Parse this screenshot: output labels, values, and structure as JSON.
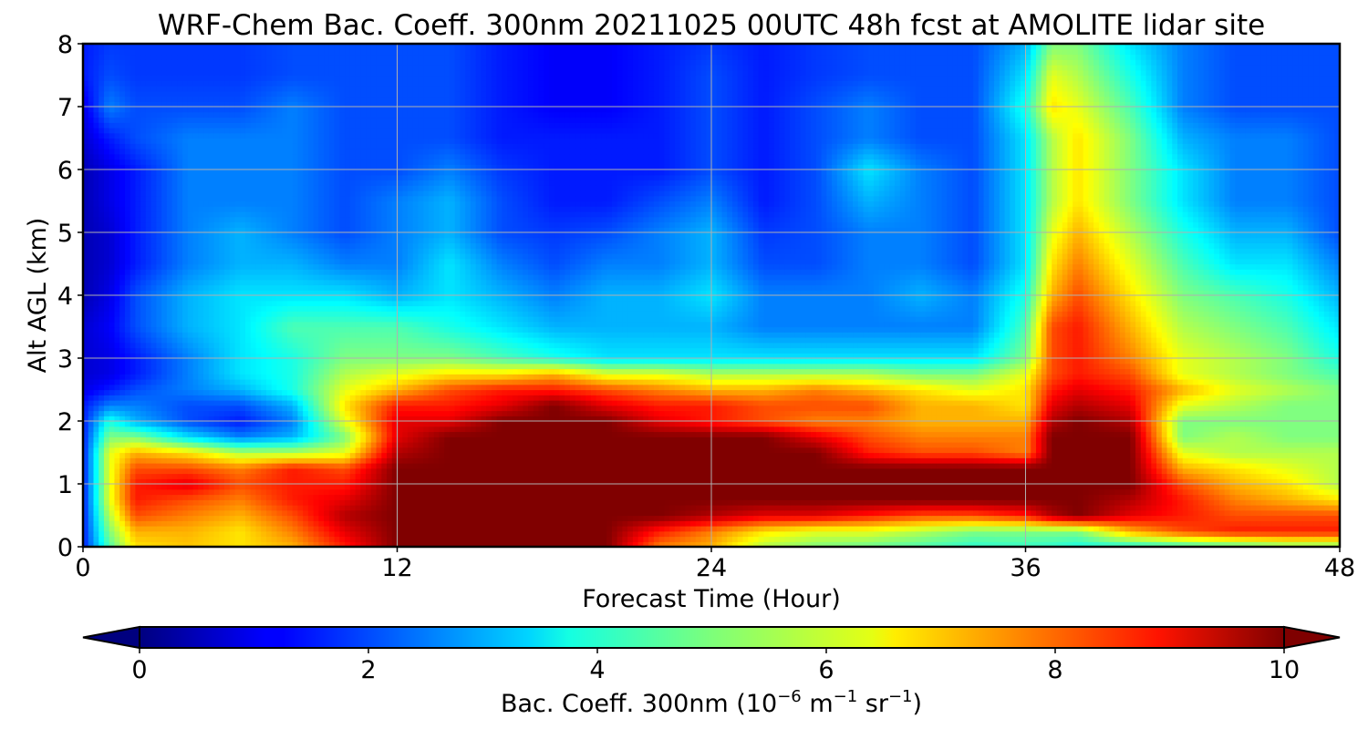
{
  "chart_data": {
    "type": "heatmap",
    "title": "WRF-Chem Bac. Coeff. 300nm  20211025 00UTC 48h fcst at AMOLITE lidar site",
    "xlabel": "Forecast Time (Hour)",
    "ylabel": "Alt AGL (km)",
    "xlim": [
      0,
      48
    ],
    "ylim": [
      0,
      8
    ],
    "xticks": [
      "0",
      "12",
      "24",
      "36",
      "48"
    ],
    "yticks": [
      "0",
      "1",
      "2",
      "3",
      "4",
      "5",
      "6",
      "7",
      "8"
    ],
    "grid": true,
    "colormap": "jet",
    "colorbar": {
      "label": "Bac. Coeff. 300nm  (10^-6 m^-1 sr^-1)",
      "label_prefix": "Bac. Coeff. 300nm  (10",
      "label_exp1": "−6",
      "label_mid": " m",
      "label_exp2": "−1",
      "label_mid2": " sr",
      "label_exp3": "−1",
      "label_suffix": ")",
      "range": [
        0,
        10
      ],
      "extend": "both",
      "ticks": [
        "0",
        "2",
        "4",
        "6",
        "8",
        "10"
      ]
    },
    "x": [
      0,
      1,
      2,
      4,
      6,
      8,
      10,
      12,
      14,
      16,
      18,
      20,
      22,
      24,
      26,
      28,
      30,
      32,
      34,
      36,
      37,
      38,
      40,
      42,
      44,
      46,
      48
    ],
    "y": [
      0,
      0.25,
      0.5,
      0.75,
      1.0,
      1.25,
      1.5,
      1.75,
      2.0,
      2.25,
      2.5,
      2.75,
      3.0,
      3.5,
      4.0,
      4.5,
      5.0,
      5.5,
      6.0,
      6.5,
      7.0,
      7.5,
      8.0
    ],
    "z": [
      [
        1.5,
        4.5,
        6.5,
        6.8,
        6.5,
        7.0,
        8.5,
        10.0,
        10.0,
        10.0,
        10.0,
        10.0,
        7.5,
        7.0,
        5.5,
        5.0,
        4.8,
        4.5,
        4.2,
        4.3,
        4.2,
        4.0,
        4.0,
        4.2,
        4.5,
        5.0,
        5.0
      ],
      [
        1.5,
        5.0,
        7.0,
        7.0,
        6.5,
        7.5,
        9.0,
        10.0,
        10.0,
        10.0,
        10.0,
        10.0,
        8.5,
        7.5,
        6.5,
        6.0,
        6.0,
        5.5,
        5.0,
        5.0,
        5.0,
        5.0,
        7.0,
        8.0,
        8.5,
        8.5,
        8.5
      ],
      [
        1.5,
        5.5,
        8.0,
        7.5,
        7.0,
        8.0,
        9.5,
        10.0,
        10.0,
        10.0,
        10.0,
        10.0,
        10.0,
        9.5,
        9.0,
        9.0,
        8.5,
        8.0,
        8.0,
        8.5,
        9.5,
        10.0,
        9.0,
        8.5,
        8.0,
        8.0,
        8.0
      ],
      [
        1.5,
        6.0,
        8.5,
        8.0,
        7.5,
        8.5,
        9.0,
        10.0,
        10.0,
        10.0,
        10.0,
        10.0,
        10.0,
        10.0,
        10.0,
        10.0,
        10.0,
        10.0,
        10.0,
        10.0,
        10.0,
        10.0,
        9.5,
        8.5,
        7.5,
        7.0,
        6.5
      ],
      [
        1.5,
        6.0,
        8.5,
        9.0,
        8.0,
        8.5,
        8.5,
        10.0,
        10.0,
        10.0,
        10.0,
        10.0,
        10.0,
        10.0,
        10.0,
        10.0,
        10.0,
        10.0,
        10.0,
        10.0,
        10.0,
        10.0,
        10.0,
        8.0,
        7.0,
        6.5,
        5.5
      ],
      [
        1.5,
        6.0,
        8.0,
        8.0,
        7.5,
        8.5,
        8.0,
        10.0,
        10.0,
        10.0,
        10.0,
        10.0,
        10.0,
        10.0,
        10.0,
        10.0,
        10.0,
        10.0,
        10.0,
        10.0,
        10.0,
        10.0,
        10.0,
        7.0,
        6.5,
        6.0,
        5.5
      ],
      [
        1.5,
        6.0,
        7.0,
        6.5,
        5.5,
        5.5,
        6.0,
        9.5,
        10.0,
        10.0,
        10.0,
        10.0,
        10.0,
        10.0,
        10.0,
        10.0,
        8.5,
        8.0,
        8.0,
        7.5,
        10.0,
        10.0,
        10.0,
        6.0,
        5.5,
        5.5,
        5.5
      ],
      [
        1.5,
        5.0,
        5.0,
        3.5,
        2.5,
        3.0,
        5.0,
        9.0,
        10.0,
        10.0,
        10.0,
        10.0,
        10.0,
        10.0,
        10.0,
        9.0,
        8.0,
        7.5,
        7.5,
        7.5,
        10.0,
        10.0,
        10.0,
        5.0,
        5.5,
        5.0,
        5.0
      ],
      [
        1.5,
        4.0,
        3.0,
        2.0,
        1.5,
        2.5,
        6.0,
        9.0,
        9.0,
        10.0,
        10.0,
        10.0,
        9.0,
        8.5,
        8.0,
        7.5,
        7.5,
        7.0,
        7.0,
        7.0,
        9.5,
        10.0,
        9.5,
        5.0,
        5.0,
        5.0,
        5.0
      ],
      [
        1.5,
        2.5,
        2.5,
        2.0,
        2.0,
        3.0,
        6.5,
        8.5,
        8.5,
        9.0,
        10.0,
        9.0,
        8.5,
        8.5,
        8.0,
        8.0,
        8.0,
        7.0,
        7.0,
        6.5,
        9.0,
        9.5,
        9.0,
        6.0,
        5.5,
        5.0,
        5.0
      ],
      [
        1.0,
        1.5,
        2.0,
        2.5,
        3.0,
        4.0,
        6.0,
        7.0,
        8.0,
        8.5,
        8.5,
        8.0,
        7.5,
        7.0,
        7.0,
        7.5,
        7.0,
        6.5,
        6.0,
        6.5,
        8.5,
        9.0,
        8.5,
        7.0,
        6.0,
        5.5,
        5.0
      ],
      [
        0.8,
        1.0,
        1.5,
        2.5,
        3.5,
        4.0,
        5.5,
        6.0,
        6.5,
        6.5,
        7.0,
        6.0,
        6.0,
        5.5,
        5.5,
        5.5,
        5.5,
        5.0,
        5.0,
        6.0,
        8.0,
        8.5,
        8.0,
        6.0,
        5.5,
        5.0,
        4.5
      ],
      [
        0.8,
        1.0,
        1.5,
        2.5,
        3.5,
        4.0,
        5.0,
        5.0,
        5.0,
        4.5,
        4.0,
        3.5,
        3.5,
        3.5,
        3.5,
        3.5,
        3.5,
        3.5,
        3.5,
        5.0,
        8.0,
        8.5,
        7.5,
        6.0,
        5.5,
        5.0,
        4.0
      ],
      [
        0.8,
        1.2,
        2.0,
        3.0,
        3.5,
        4.5,
        4.5,
        4.5,
        4.0,
        3.5,
        3.0,
        3.0,
        3.0,
        3.0,
        2.5,
        2.5,
        2.5,
        2.5,
        2.5,
        4.5,
        8.0,
        8.5,
        7.0,
        5.5,
        5.0,
        4.5,
        3.5
      ],
      [
        0.5,
        1.0,
        2.0,
        3.0,
        3.5,
        3.5,
        3.5,
        3.0,
        3.5,
        3.0,
        2.5,
        3.0,
        3.0,
        3.5,
        2.5,
        2.5,
        2.5,
        3.0,
        2.5,
        4.0,
        7.0,
        8.0,
        6.5,
        5.0,
        4.5,
        4.0,
        3.0
      ],
      [
        0.5,
        0.8,
        1.5,
        2.5,
        3.0,
        3.0,
        2.5,
        2.5,
        3.5,
        2.5,
        2.0,
        2.5,
        2.5,
        3.0,
        2.0,
        2.0,
        2.5,
        2.5,
        2.0,
        3.5,
        6.5,
        7.5,
        6.0,
        4.5,
        3.5,
        3.5,
        2.5
      ],
      [
        0.5,
        0.8,
        1.5,
        2.5,
        3.0,
        2.5,
        2.0,
        2.5,
        3.0,
        2.0,
        1.8,
        2.0,
        2.5,
        3.0,
        1.8,
        2.0,
        2.5,
        2.5,
        2.0,
        3.5,
        6.0,
        7.0,
        5.5,
        4.0,
        3.0,
        3.0,
        2.0
      ],
      [
        0.5,
        1.0,
        1.5,
        2.5,
        2.5,
        2.5,
        2.0,
        2.5,
        3.0,
        2.0,
        1.5,
        1.5,
        2.0,
        2.5,
        1.5,
        2.0,
        3.0,
        2.5,
        2.0,
        3.5,
        5.5,
        6.5,
        5.0,
        3.5,
        2.5,
        2.5,
        2.0
      ],
      [
        0.5,
        1.0,
        1.5,
        2.5,
        2.5,
        2.5,
        2.0,
        2.0,
        2.5,
        1.8,
        1.5,
        1.5,
        1.5,
        2.0,
        1.5,
        2.0,
        3.5,
        2.5,
        2.0,
        3.5,
        5.5,
        6.5,
        5.0,
        3.5,
        2.5,
        2.5,
        2.0
      ],
      [
        0.8,
        1.5,
        2.0,
        2.5,
        2.5,
        2.5,
        2.0,
        2.0,
        2.0,
        1.5,
        1.5,
        1.5,
        1.5,
        2.0,
        1.5,
        2.0,
        2.5,
        2.0,
        2.0,
        3.5,
        5.5,
        6.5,
        5.0,
        3.0,
        2.5,
        2.5,
        2.0
      ],
      [
        1.0,
        2.5,
        2.0,
        2.0,
        2.0,
        2.5,
        2.0,
        2.0,
        2.0,
        1.5,
        1.2,
        1.2,
        1.5,
        2.0,
        1.5,
        2.0,
        2.5,
        2.0,
        2.0,
        4.0,
        6.5,
        6.0,
        4.5,
        2.5,
        2.0,
        2.0,
        2.0
      ],
      [
        1.5,
        2.0,
        1.8,
        1.8,
        1.8,
        2.0,
        2.0,
        2.0,
        2.0,
        1.5,
        1.2,
        1.2,
        1.5,
        2.0,
        1.5,
        1.8,
        2.0,
        2.0,
        2.0,
        3.5,
        6.0,
        5.5,
        4.0,
        2.5,
        2.0,
        2.0,
        2.0
      ],
      [
        1.5,
        1.8,
        1.8,
        1.8,
        1.8,
        2.0,
        2.0,
        2.0,
        2.0,
        1.5,
        1.2,
        1.2,
        1.5,
        1.8,
        1.5,
        1.8,
        2.0,
        2.0,
        2.0,
        3.0,
        5.0,
        5.0,
        3.5,
        2.5,
        2.0,
        2.0,
        2.0
      ]
    ]
  }
}
